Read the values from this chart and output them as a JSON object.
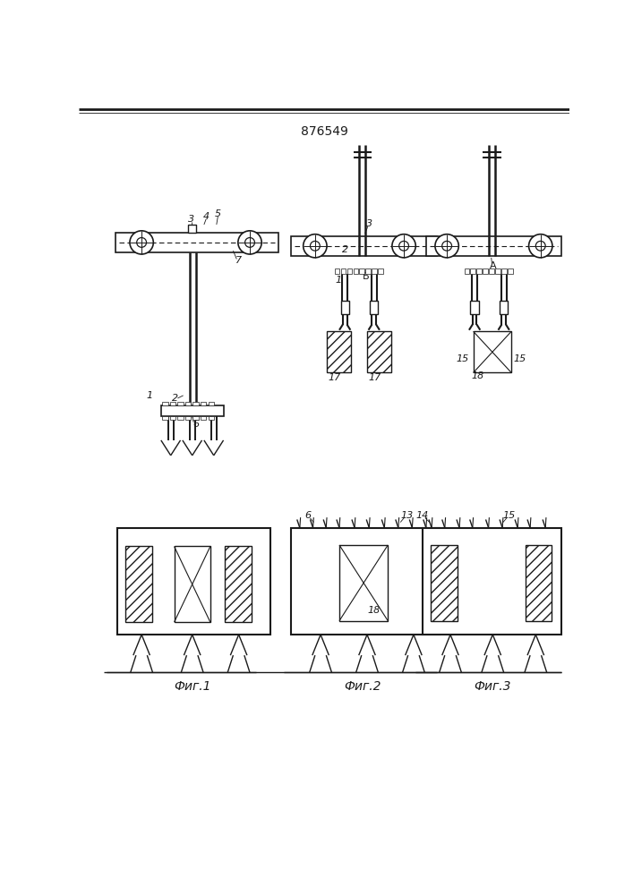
{
  "title": "876549",
  "background": "#ffffff",
  "lc": "#1a1a1a",
  "fig_labels": [
    "Фиг.1",
    "Фиг.2",
    "Фиг.3"
  ]
}
